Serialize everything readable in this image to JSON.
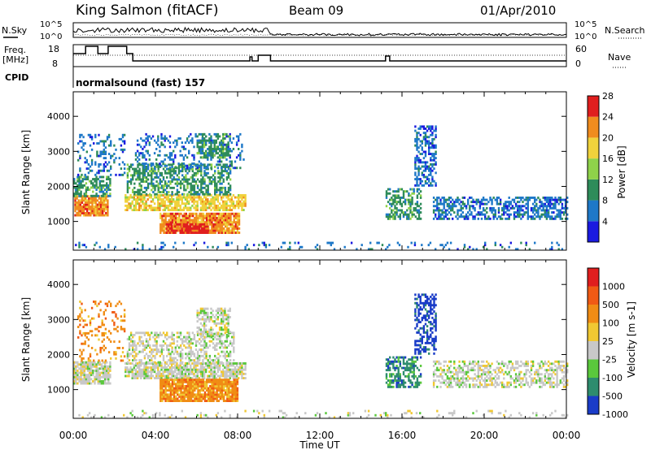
{
  "header": {
    "radar": "King Salmon (fitACF)",
    "beam": "Beam 09",
    "date": "01/Apr/2010"
  },
  "strip": {
    "nsky_label": "N.Sky",
    "nsearch_label": "N.Search",
    "freq_label_1": "Freq.",
    "freq_label_2": "[MHz]",
    "nave_label": "Nave",
    "cpid_label": "CPID",
    "cpid_value": "normalsound (fast) 157",
    "left_ticks_noise": [
      "10^5",
      "10^0"
    ],
    "right_ticks_noise": [
      "10^5",
      "10^0"
    ],
    "left_ticks_freq": [
      "18",
      "8"
    ],
    "right_ticks_nave": [
      "60",
      "0"
    ]
  },
  "chart_data": [
    {
      "type": "heatmap",
      "name": "power",
      "ylabel": "Slant Range [km]",
      "xlabel": "Time UT",
      "y_ticks": [
        1000,
        2000,
        3000,
        4000
      ],
      "ylim": [
        180,
        4700
      ],
      "x_ticks": [
        "00:00",
        "04:00",
        "08:00",
        "12:00",
        "16:00",
        "20:00",
        "00:00"
      ],
      "xlim_hours": [
        0,
        24
      ],
      "colorbar": {
        "label": "Power [dB]",
        "ticks": [
          "4",
          "8",
          "12",
          "16",
          "20",
          "24",
          "28"
        ],
        "colors": [
          "#1a1ae0",
          "#1e78c8",
          "#2e8c5a",
          "#8fd24a",
          "#f0d23c",
          "#f08c1e",
          "#e01e1e"
        ]
      },
      "regions": [
        {
          "t": [
            0.05,
            1.7
          ],
          "r": [
            1150,
            1700
          ],
          "level": 5,
          "density": 0.9
        },
        {
          "t": [
            0.0,
            1.8
          ],
          "r": [
            1700,
            2300
          ],
          "level": 2,
          "density": 0.6
        },
        {
          "t": [
            0.2,
            2.5
          ],
          "r": [
            2300,
            3500
          ],
          "level": 1,
          "density": 0.25
        },
        {
          "t": [
            2.5,
            8.4
          ],
          "r": [
            1300,
            1750
          ],
          "level": 4,
          "density": 0.75
        },
        {
          "t": [
            2.6,
            7.6
          ],
          "r": [
            1750,
            2600
          ],
          "level": 2,
          "density": 0.55
        },
        {
          "t": [
            3.0,
            8.3
          ],
          "r": [
            2500,
            3500
          ],
          "level": 1,
          "density": 0.25
        },
        {
          "t": [
            4.2,
            8.1
          ],
          "r": [
            650,
            1250
          ],
          "level": 5,
          "density": 0.9
        },
        {
          "t": [
            4.5,
            6.5
          ],
          "r": [
            650,
            900
          ],
          "level": 6,
          "density": 0.8
        },
        {
          "t": [
            6.0,
            7.6
          ],
          "r": [
            2800,
            3500
          ],
          "level": 2,
          "density": 0.55
        },
        {
          "t": [
            15.2,
            16.9
          ],
          "r": [
            1050,
            1900
          ],
          "level": 2,
          "density": 0.55
        },
        {
          "t": [
            16.6,
            17.6
          ],
          "r": [
            2000,
            3700
          ],
          "level": 1,
          "density": 0.5
        },
        {
          "t": [
            17.5,
            24.0
          ],
          "r": [
            1050,
            1700
          ],
          "level": 1,
          "density": 0.55
        },
        {
          "t": [
            0.0,
            24.0
          ],
          "r": [
            180,
            420
          ],
          "level": 1,
          "density": 0.12
        }
      ]
    },
    {
      "type": "heatmap",
      "name": "velocity",
      "ylabel": "Slant Range [km]",
      "xlabel": "Time UT",
      "y_ticks": [
        1000,
        2000,
        3000,
        4000
      ],
      "ylim": [
        180,
        4700
      ],
      "x_ticks": [
        "00:00",
        "04:00",
        "08:00",
        "12:00",
        "16:00",
        "20:00",
        "00:00"
      ],
      "xlim_hours": [
        0,
        24
      ],
      "colorbar": {
        "label": "Velocity [m s-1]",
        "ticks": [
          "1000",
          "500",
          "100",
          "25",
          "-25",
          "-100",
          "-500",
          "-1000"
        ],
        "colors": [
          "#1a3cc8",
          "#2e8c6e",
          "#5ac83c",
          "#c8c8c8",
          "#f0c832",
          "#f08c14",
          "#f05a14",
          "#e01e1e"
        ]
      },
      "regions": [
        {
          "t": [
            0.0,
            1.8
          ],
          "r": [
            1150,
            1800
          ],
          "level": 3,
          "density": 0.85
        },
        {
          "t": [
            0.2,
            2.5
          ],
          "r": [
            1800,
            3500
          ],
          "level": 5,
          "density": 0.2
        },
        {
          "t": [
            2.5,
            8.4
          ],
          "r": [
            1300,
            1750
          ],
          "level": 3,
          "density": 0.8
        },
        {
          "t": [
            2.6,
            7.8
          ],
          "r": [
            1750,
            2600
          ],
          "level": 3,
          "density": 0.45
        },
        {
          "t": [
            4.2,
            8.0
          ],
          "r": [
            650,
            1300
          ],
          "level": 5,
          "density": 0.92
        },
        {
          "t": [
            6.0,
            7.6
          ],
          "r": [
            2500,
            3300
          ],
          "level": 3,
          "density": 0.5
        },
        {
          "t": [
            15.2,
            16.9
          ],
          "r": [
            1050,
            1900
          ],
          "level": 1,
          "density": 0.55
        },
        {
          "t": [
            16.6,
            17.6
          ],
          "r": [
            2000,
            3700
          ],
          "level": 0,
          "density": 0.5
        },
        {
          "t": [
            17.5,
            24.0
          ],
          "r": [
            1050,
            1800
          ],
          "level": 3,
          "density": 0.5
        },
        {
          "t": [
            0.0,
            24.0
          ],
          "r": [
            180,
            420
          ],
          "level": 3,
          "density": 0.12
        }
      ]
    }
  ]
}
